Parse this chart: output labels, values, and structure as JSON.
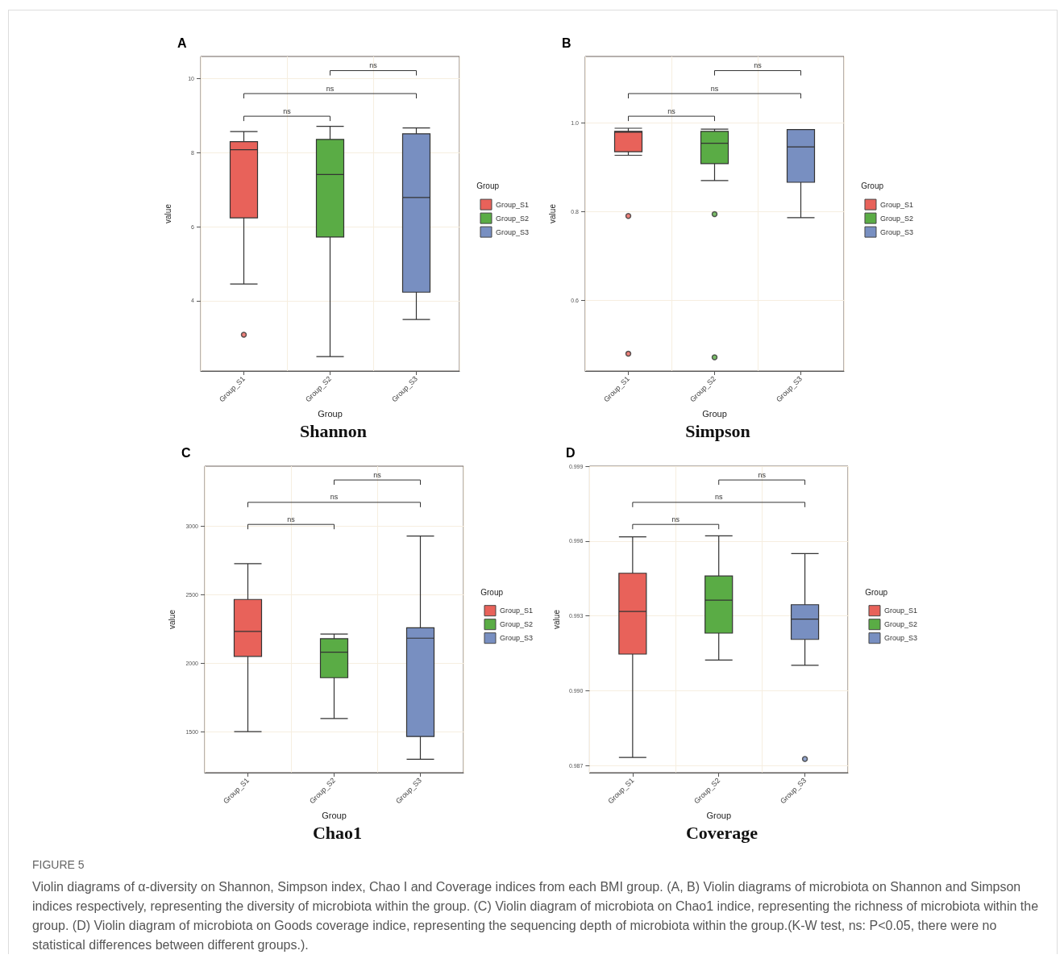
{
  "chart_data": [
    {
      "type": "box",
      "title": "Shannon",
      "subtitle": "A",
      "xlabel": "Group",
      "ylabel": "value",
      "legend_title": "Group",
      "legend": "right",
      "grid": true,
      "categories": [
        "Group_S1",
        "Group_S2",
        "Group_S3"
      ],
      "ylim": [
        2.1,
        10.6
      ],
      "yticks": [
        4,
        6,
        8,
        10
      ],
      "annotations": [
        "ns",
        "ns",
        "ns"
      ],
      "series": [
        {
          "name": "Group_S1",
          "color": "#e8625a",
          "boxes": [
            {
              "low": 4.45,
              "q1": 6.24,
              "median": 8.08,
              "q3": 8.3,
              "high": 8.57,
              "outliers": [
                3.08
              ]
            },
            null,
            null
          ]
        },
        {
          "name": "Group_S2",
          "color": "#5aac45",
          "boxes": [
            null,
            {
              "low": 2.49,
              "q1": 5.72,
              "median": 7.41,
              "q3": 8.36,
              "high": 8.71
            },
            null
          ]
        },
        {
          "name": "Group_S3",
          "color": "#788fc1",
          "boxes": [
            null,
            null,
            {
              "low": 3.49,
              "q1": 4.23,
              "median": 6.79,
              "q3": 8.51,
              "high": 8.67
            }
          ]
        }
      ]
    },
    {
      "type": "box",
      "title": "Simpson",
      "subtitle": "B",
      "xlabel": "Group",
      "ylabel": "value",
      "legend_title": "Group",
      "legend": "right",
      "grid": true,
      "categories": [
        "Group_S1",
        "Group_S2",
        "Group_S3"
      ],
      "ylim": [
        0.44,
        1.15
      ],
      "yticks": [
        0.6,
        0.8,
        {
          "value": 1,
          "label": "1.0"
        }
      ],
      "annotations": [
        "ns",
        "ns",
        "ns"
      ],
      "series": [
        {
          "name": "Group_S1",
          "color": "#e8625a",
          "boxes": [
            {
              "low": 0.927,
              "q1": 0.935,
              "median": 0.979,
              "q3": 0.981,
              "high": 0.988,
              "outliers": [
                0.79,
                0.479
              ]
            },
            null,
            null
          ]
        },
        {
          "name": "Group_S2",
          "color": "#5aac45",
          "boxes": [
            null,
            {
              "low": 0.87,
              "q1": 0.908,
              "median": 0.954,
              "q3": 0.981,
              "high": 0.986,
              "outliers": [
                0.794,
                0.471
              ]
            },
            null
          ]
        },
        {
          "name": "Group_S3",
          "color": "#788fc1",
          "boxes": [
            null,
            null,
            {
              "low": 0.786,
              "q1": 0.866,
              "median": 0.946,
              "q3": 0.985,
              "high": 0.985
            }
          ]
        }
      ]
    },
    {
      "type": "box",
      "title": "Chao1",
      "subtitle": "C",
      "xlabel": "Group",
      "ylabel": "value",
      "legend_title": "Group",
      "legend": "right",
      "grid": true,
      "categories": [
        "Group_S1",
        "Group_S2",
        "Group_S3"
      ],
      "ylim": [
        1200,
        3440
      ],
      "yticks": [
        1500,
        2000,
        2500,
        3000
      ],
      "annotations": [
        "ns",
        "ns",
        "ns"
      ],
      "series": [
        {
          "name": "Group_S1",
          "color": "#e8625a",
          "boxes": [
            {
              "low": 1500,
              "q1": 2050,
              "median": 2232,
              "q3": 2466,
              "high": 2727
            },
            null,
            null
          ]
        },
        {
          "name": "Group_S2",
          "color": "#5aac45",
          "boxes": [
            null,
            {
              "low": 1596,
              "q1": 1894,
              "median": 2081,
              "q3": 2179,
              "high": 2213
            },
            null
          ]
        },
        {
          "name": "Group_S3",
          "color": "#788fc1",
          "boxes": [
            null,
            null,
            {
              "low": 1298,
              "q1": 1464,
              "median": 2183,
              "q3": 2259,
              "high": 2929
            }
          ]
        }
      ]
    },
    {
      "type": "box",
      "title": "Coverage",
      "subtitle": "D",
      "xlabel": "Group",
      "ylabel": "value",
      "legend_title": "Group",
      "legend": "right",
      "grid": true,
      "categories": [
        "Group_S1",
        "Group_S2",
        "Group_S3"
      ],
      "ylim": [
        0.98672,
        0.999
      ],
      "yticks": [
        0.987,
        {
          "value": 0.99,
          "label": "0.990"
        },
        0.993,
        0.996,
        0.999
      ],
      "annotations": [
        "ns",
        "ns",
        "ns",
        "FIGURE 5",
        "Violin diagrams of α-diversity on Shannon, Simpson index, Chao I and Coverage indices from each BMI group. (A, B) Violin diagrams of microbiota on Shannon and Simpson indices respectively, representing the diversity of microbiota within the group. (C) Violin diagram of microbiota on Chao1 indice, representing the richness of microbiota within the group. (D) Violin diagram of microbiota on Goods coverage indice, representing the sequencing depth of microbiota within the group.(K-W test, ns: P<0.05, there were no statistical differences between different groups.)."
      ],
      "series": [
        {
          "name": "Group_S1",
          "color": "#e8625a",
          "boxes": [
            {
              "low": 0.98733,
              "q1": 0.99147,
              "median": 0.99318,
              "q3": 0.99471,
              "high": 0.99617
            },
            null,
            null
          ]
        },
        {
          "name": "Group_S2",
          "color": "#5aac45",
          "boxes": [
            null,
            {
              "low": 0.99123,
              "q1": 0.99231,
              "median": 0.99363,
              "q3": 0.9946,
              "high": 0.99621
            },
            null
          ]
        },
        {
          "name": "Group_S3",
          "color": "#788fc1",
          "boxes": [
            null,
            null,
            {
              "low": 0.99102,
              "q1": 0.99206,
              "median": 0.99287,
              "q3": 0.99345,
              "high": 0.9955,
              "outliers": [
                0.98727
              ]
            }
          ]
        }
      ]
    }
  ]
}
